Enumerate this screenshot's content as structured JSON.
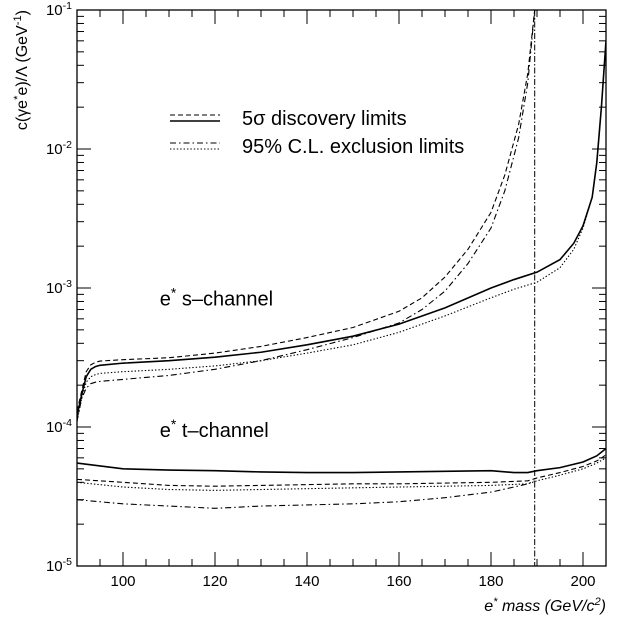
{
  "chart_data": {
    "type": "line",
    "title": "",
    "xlabel": "e* mass (GeV/c²)",
    "xlabel_parts": {
      "pre": "e",
      "sup1": "*",
      "mid": " mass (GeV/c",
      "sup2": "2",
      "post": ")"
    },
    "ylabel": "c(γe*e)/Λ (GeV⁻¹)",
    "ylabel_parts": {
      "pre": "c(γe",
      "sup1": "*",
      "mid": "e)/Λ (GeV",
      "sup2": "-1",
      "post": ")"
    },
    "xlim": [
      90,
      205
    ],
    "ylim": [
      1e-05,
      0.1
    ],
    "yscale": "log",
    "grid": false,
    "x_ticks": [
      100,
      120,
      140,
      160,
      180,
      200
    ],
    "y_ticks": [
      {
        "value": 1e-05,
        "base": "10",
        "exp": "-5"
      },
      {
        "value": 0.0001,
        "base": "10",
        "exp": "-4"
      },
      {
        "value": 0.001,
        "base": "10",
        "exp": "-3"
      },
      {
        "value": 0.01,
        "base": "10",
        "exp": "-2"
      },
      {
        "value": 0.1,
        "base": "10",
        "exp": "-1"
      }
    ],
    "vertical_line_x": 189.5,
    "legend": {
      "placement": "top-center",
      "entries": [
        {
          "label": "5σ discovery limits",
          "styles": [
            "dashed",
            "solid"
          ]
        },
        {
          "label": "95% C.L. exclusion limits",
          "styles": [
            "dashdot",
            "dotted"
          ]
        }
      ]
    },
    "annotations": [
      {
        "id": "s",
        "pre": "e",
        "sup": "*",
        "post": " s–channel",
        "x": 108,
        "y": 0.00075
      },
      {
        "id": "t",
        "pre": "e",
        "sup": "*",
        "post": " t–channel",
        "x": 108,
        "y": 8.5e-05
      }
    ],
    "series": [
      {
        "group": "s-channel",
        "style": "dashed",
        "x": [
          90,
          91,
          92,
          93,
          94,
          95,
          100,
          110,
          120,
          130,
          140,
          150,
          160,
          165,
          170,
          175,
          180,
          183,
          186,
          188,
          189.5
        ],
        "y": [
          0.00013,
          0.00018,
          0.00025,
          0.00028,
          0.000292,
          0.000298,
          0.000305,
          0.000315,
          0.00034,
          0.00038,
          0.00044,
          0.00052,
          0.00068,
          0.00085,
          0.0012,
          0.0019,
          0.0035,
          0.0065,
          0.015,
          0.035,
          0.1
        ]
      },
      {
        "group": "s-channel",
        "style": "solid",
        "x": [
          90,
          91,
          92,
          93,
          94,
          95,
          100,
          110,
          120,
          130,
          140,
          150,
          160,
          170,
          180,
          185,
          190,
          195,
          198,
          200,
          202,
          203,
          204,
          205
        ],
        "y": [
          0.00012,
          0.00017,
          0.00023,
          0.00026,
          0.000272,
          0.000278,
          0.000288,
          0.0003,
          0.000318,
          0.000345,
          0.00039,
          0.00045,
          0.00055,
          0.00072,
          0.001,
          0.00115,
          0.0013,
          0.0016,
          0.0021,
          0.0028,
          0.0045,
          0.008,
          0.02,
          0.06
        ]
      },
      {
        "group": "s-channel",
        "style": "dashdot",
        "x": [
          90,
          91,
          92,
          93,
          94,
          95,
          100,
          110,
          120,
          130,
          140,
          150,
          160,
          165,
          170,
          175,
          180,
          183,
          186,
          188,
          189.5
        ],
        "y": [
          0.00011,
          0.00016,
          0.00019,
          0.000205,
          0.00021,
          0.000213,
          0.00022,
          0.000235,
          0.00026,
          0.0003,
          0.00036,
          0.00044,
          0.00056,
          0.0007,
          0.00095,
          0.0015,
          0.0027,
          0.005,
          0.012,
          0.03,
          0.1
        ]
      },
      {
        "group": "s-channel",
        "style": "dotted",
        "x": [
          90,
          91,
          92,
          93,
          94,
          95,
          100,
          110,
          120,
          130,
          140,
          150,
          160,
          170,
          180,
          185,
          190,
          195,
          198,
          200,
          202,
          203,
          204,
          205
        ],
        "y": [
          0.00011,
          0.00016,
          0.00021,
          0.00023,
          0.000238,
          0.000243,
          0.00025,
          0.00026,
          0.000275,
          0.0003,
          0.00034,
          0.00039,
          0.00048,
          0.00063,
          0.00085,
          0.00098,
          0.0011,
          0.0014,
          0.0019,
          0.0027,
          0.0045,
          0.008,
          0.02,
          0.06
        ]
      },
      {
        "group": "t-channel",
        "style": "solid",
        "x": [
          90,
          100,
          110,
          120,
          130,
          140,
          150,
          160,
          170,
          180,
          185,
          188,
          190,
          195,
          200,
          203,
          205
        ],
        "y": [
          5.5e-05,
          5e-05,
          4.9e-05,
          4.85e-05,
          4.75e-05,
          4.7e-05,
          4.7e-05,
          4.75e-05,
          4.8e-05,
          4.85e-05,
          4.7e-05,
          4.7e-05,
          4.85e-05,
          5.1e-05,
          5.6e-05,
          6.2e-05,
          7e-05
        ]
      },
      {
        "group": "t-channel",
        "style": "dashed",
        "x": [
          90,
          100,
          110,
          120,
          130,
          140,
          150,
          160,
          170,
          180,
          188,
          190,
          195,
          200,
          203,
          205
        ],
        "y": [
          4.2e-05,
          4e-05,
          3.8e-05,
          3.75e-05,
          3.8e-05,
          3.85e-05,
          3.9e-05,
          3.9e-05,
          3.95e-05,
          4e-05,
          4.1e-05,
          4.3e-05,
          4.7e-05,
          5.2e-05,
          5.7e-05,
          6.3e-05
        ]
      },
      {
        "group": "t-channel",
        "style": "dotted",
        "x": [
          90,
          100,
          110,
          120,
          130,
          140,
          150,
          160,
          170,
          180,
          188,
          190,
          195,
          200,
          203,
          205
        ],
        "y": [
          4e-05,
          3.7e-05,
          3.55e-05,
          3.5e-05,
          3.55e-05,
          3.6e-05,
          3.65e-05,
          3.7e-05,
          3.75e-05,
          3.8e-05,
          3.9e-05,
          4.1e-05,
          4.5e-05,
          5e-05,
          5.5e-05,
          6e-05
        ]
      },
      {
        "group": "t-channel",
        "style": "dashdot",
        "x": [
          90,
          100,
          110,
          120,
          130,
          140,
          150,
          160,
          170,
          180,
          185,
          188,
          189.5
        ],
        "y": [
          3e-05,
          2.8e-05,
          2.7e-05,
          2.6e-05,
          2.7e-05,
          2.75e-05,
          2.8e-05,
          2.9e-05,
          3.1e-05,
          3.4e-05,
          3.7e-05,
          3.9e-05,
          4.1e-05
        ]
      }
    ]
  }
}
